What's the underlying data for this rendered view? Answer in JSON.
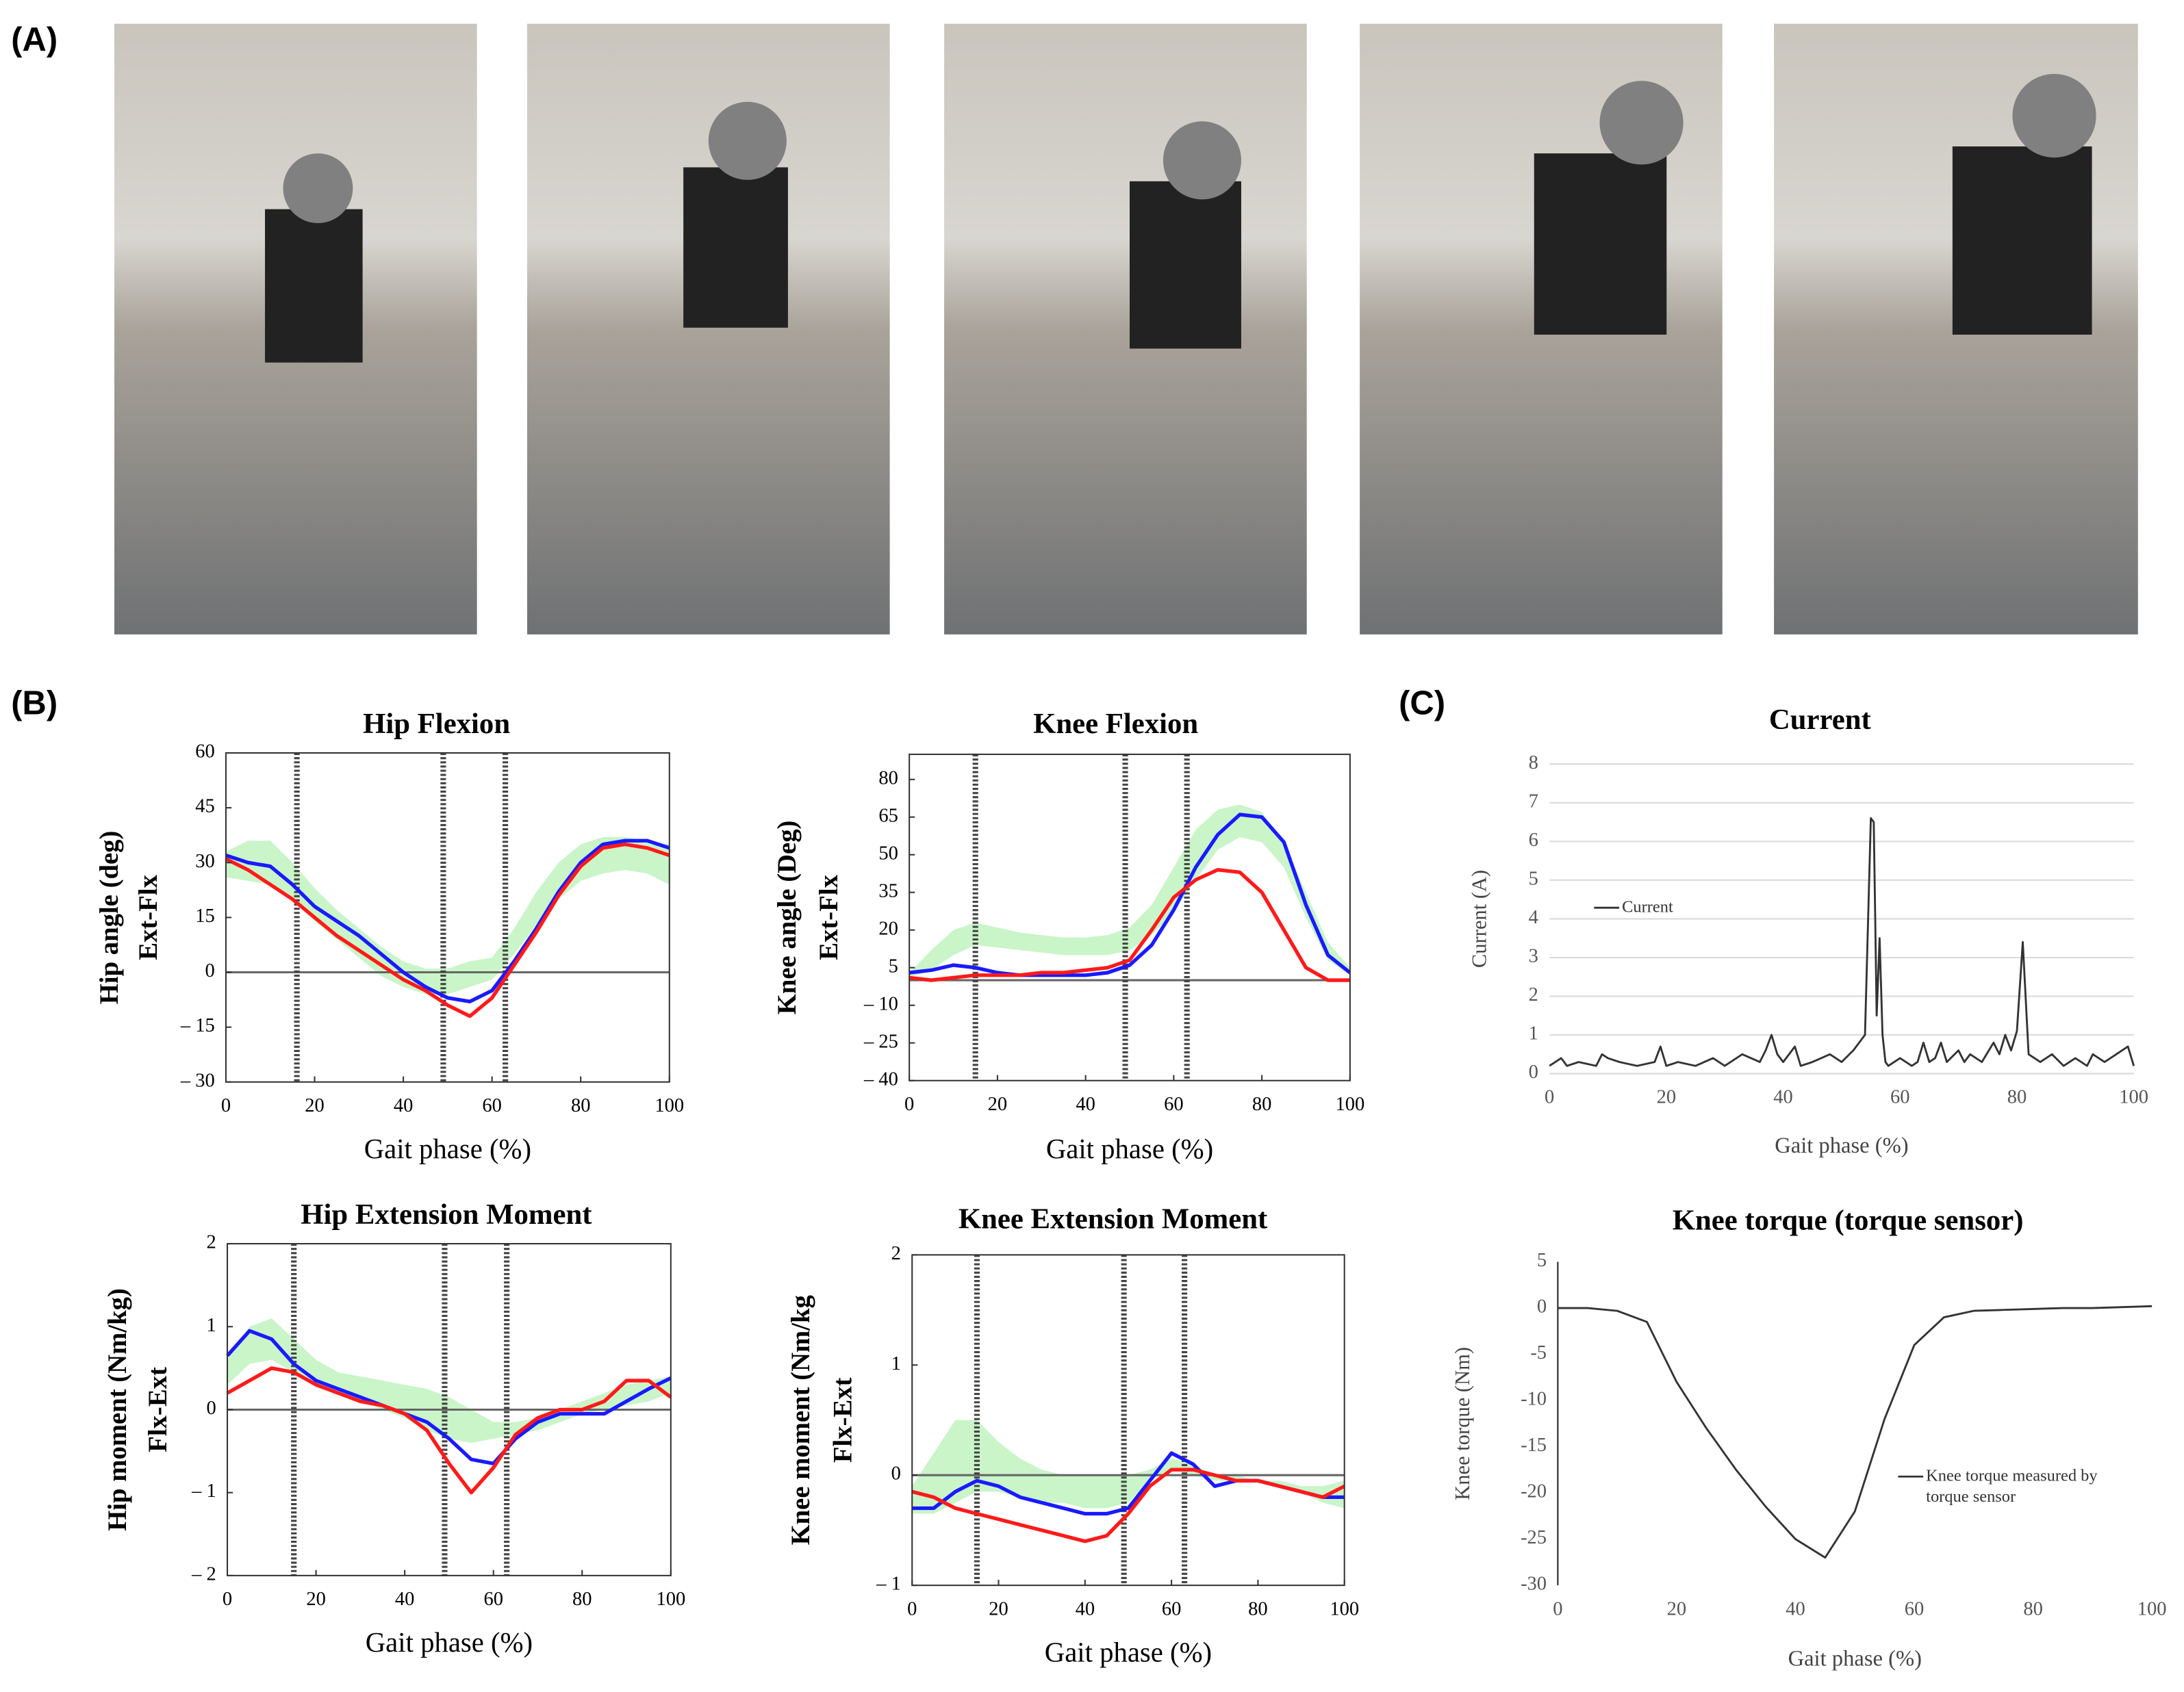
{
  "panel_labels": [
    "(A)",
    "(B)",
    "(C)"
  ],
  "chart_data": [
    {
      "type": "line",
      "title": "Hip Flexion",
      "xlabel": "Gait phase (%)",
      "ylabel": [
        "Hip angle (deg)",
        "Ext-Flx"
      ],
      "xlim": [
        0,
        100
      ],
      "xticks": [
        0,
        20,
        40,
        60,
        80,
        100
      ],
      "ylim": [
        -30,
        60
      ],
      "yticks": [
        {
          "value": -30,
          "label": "– 30"
        },
        {
          "value": -15,
          "label": "– 15"
        },
        0,
        15,
        30,
        45,
        60
      ],
      "frame": "box",
      "zero_line": true,
      "vlines": [
        16,
        49,
        63
      ],
      "x": [
        0,
        5,
        10,
        15,
        20,
        25,
        30,
        35,
        40,
        45,
        50,
        55,
        60,
        65,
        70,
        75,
        80,
        85,
        90,
        95,
        100
      ],
      "band": {
        "color": "#c9f5c9",
        "lower": [
          26,
          25,
          24,
          20,
          14,
          9,
          4,
          -1,
          -4,
          -6,
          -6,
          -4,
          -2,
          5,
          13,
          20,
          25,
          27,
          28,
          27,
          24
        ],
        "upper": [
          33,
          36,
          36,
          30,
          23,
          17,
          12,
          7,
          3,
          1,
          1,
          3,
          4,
          12,
          22,
          30,
          35,
          37,
          37,
          36,
          35
        ]
      },
      "series": [
        {
          "color": "#1a1aff",
          "values": [
            32,
            30,
            29,
            24,
            18,
            14,
            10,
            5,
            0,
            -4,
            -7,
            -8,
            -5,
            3,
            12,
            22,
            30,
            35,
            36,
            36,
            34
          ]
        },
        {
          "color": "#ff1a1a",
          "values": [
            31,
            28,
            24,
            20,
            15,
            10,
            6,
            2,
            -2,
            -5,
            -9,
            -12,
            -7,
            2,
            11,
            21,
            29,
            34,
            35,
            34,
            32
          ]
        }
      ]
    },
    {
      "type": "line",
      "title": "Knee Flexion",
      "xlabel": "Gait phase (%)",
      "ylabel": [
        "Knee angle (Deg)",
        "Ext-Flx"
      ],
      "xlim": [
        0,
        100
      ],
      "xticks": [
        0,
        20,
        40,
        60,
        80,
        100
      ],
      "ylim": [
        -40,
        90
      ],
      "yticks": [
        {
          "value": -40,
          "label": "– 40"
        },
        {
          "value": -25,
          "label": "– 25"
        },
        {
          "value": -10,
          "label": "– 10"
        },
        5,
        20,
        35,
        50,
        65,
        80
      ],
      "frame": "box",
      "zero_line": true,
      "vlines": [
        15,
        49,
        63
      ],
      "x": [
        0,
        5,
        10,
        15,
        20,
        25,
        30,
        35,
        40,
        45,
        50,
        55,
        60,
        65,
        70,
        75,
        80,
        85,
        90,
        95,
        100
      ],
      "band": {
        "color": "#c9f5c9",
        "lower": [
          1,
          4,
          10,
          14,
          13,
          12,
          11,
          10,
          10,
          10,
          12,
          18,
          27,
          40,
          52,
          57,
          55,
          45,
          25,
          8,
          2
        ],
        "upper": [
          3,
          12,
          20,
          23,
          21,
          19,
          18,
          17,
          17,
          18,
          21,
          30,
          45,
          60,
          68,
          70,
          67,
          55,
          35,
          15,
          5
        ]
      },
      "series": [
        {
          "color": "#1a1aff",
          "values": [
            3,
            4,
            6,
            5,
            3,
            2,
            2,
            2,
            2,
            3,
            6,
            14,
            28,
            45,
            58,
            66,
            65,
            55,
            30,
            10,
            3
          ]
        },
        {
          "color": "#ff1a1a",
          "values": [
            1,
            0,
            1,
            2,
            2,
            2,
            3,
            3,
            4,
            5,
            8,
            20,
            33,
            40,
            44,
            43,
            35,
            20,
            5,
            0,
            0
          ]
        }
      ]
    },
    {
      "type": "line",
      "title": "Hip Extension Moment",
      "xlabel": "Gait phase (%)",
      "ylabel": [
        "Hip moment (Nm/kg)",
        "Flx-Ext"
      ],
      "xlim": [
        0,
        100
      ],
      "xticks": [
        0,
        20,
        40,
        60,
        80,
        100
      ],
      "ylim": [
        -2,
        2
      ],
      "yticks": [
        {
          "value": -2,
          "label": "– 2"
        },
        {
          "value": -1,
          "label": "– 1"
        },
        0,
        1,
        2
      ],
      "frame": "box",
      "zero_line": true,
      "vlines": [
        15,
        49,
        63
      ],
      "x": [
        0,
        5,
        10,
        15,
        20,
        25,
        30,
        35,
        40,
        45,
        50,
        55,
        60,
        65,
        70,
        75,
        80,
        85,
        90,
        95,
        100
      ],
      "band": {
        "color": "#c9f5c9",
        "lower": [
          0.3,
          0.55,
          0.6,
          0.45,
          0.3,
          0.2,
          0.1,
          0.0,
          -0.1,
          -0.25,
          -0.35,
          -0.4,
          -0.35,
          -0.3,
          -0.25,
          -0.15,
          -0.05,
          0.0,
          0.05,
          0.1,
          0.2
        ],
        "upper": [
          0.6,
          1.0,
          1.1,
          0.85,
          0.6,
          0.45,
          0.4,
          0.35,
          0.3,
          0.25,
          0.15,
          0.0,
          -0.15,
          -0.15,
          -0.1,
          0.0,
          0.1,
          0.2,
          0.3,
          0.35,
          0.4
        ]
      },
      "series": [
        {
          "color": "#1a1aff",
          "values": [
            0.65,
            0.95,
            0.85,
            0.55,
            0.35,
            0.25,
            0.15,
            0.05,
            -0.05,
            -0.15,
            -0.35,
            -0.6,
            -0.65,
            -0.35,
            -0.15,
            -0.05,
            -0.05,
            -0.05,
            0.1,
            0.25,
            0.38
          ]
        },
        {
          "color": "#ff1a1a",
          "values": [
            0.2,
            0.35,
            0.5,
            0.45,
            0.3,
            0.2,
            0.1,
            0.05,
            -0.05,
            -0.25,
            -0.65,
            -1.0,
            -0.7,
            -0.3,
            -0.1,
            0.0,
            0.0,
            0.1,
            0.35,
            0.35,
            0.15
          ]
        }
      ]
    },
    {
      "type": "line",
      "title": "Knee Extension Moment",
      "xlabel": "Gait phase (%)",
      "ylabel": [
        "Knee moment (Nm/kg",
        "Flx-Ext"
      ],
      "xlim": [
        0,
        100
      ],
      "xticks": [
        0,
        20,
        40,
        60,
        80,
        100
      ],
      "ylim": [
        -1,
        2
      ],
      "yticks": [
        {
          "value": -1,
          "label": "– 1"
        },
        0,
        1,
        2
      ],
      "frame": "box",
      "zero_line": true,
      "vlines": [
        15,
        49,
        63
      ],
      "x": [
        0,
        5,
        10,
        15,
        20,
        25,
        30,
        35,
        40,
        45,
        50,
        55,
        60,
        65,
        70,
        75,
        80,
        85,
        90,
        95,
        100
      ],
      "band": {
        "color": "#c9f5c9",
        "lower": [
          -0.35,
          -0.35,
          -0.25,
          -0.15,
          -0.15,
          -0.2,
          -0.25,
          -0.25,
          -0.3,
          -0.3,
          -0.25,
          -0.05,
          0.05,
          0.0,
          -0.05,
          -0.05,
          -0.05,
          -0.1,
          -0.15,
          -0.25,
          -0.3
        ],
        "upper": [
          -0.1,
          0.2,
          0.5,
          0.5,
          0.3,
          0.15,
          0.05,
          0.0,
          0.0,
          0.0,
          0.0,
          0.05,
          0.15,
          0.1,
          0.0,
          0.0,
          -0.05,
          -0.05,
          -0.1,
          -0.1,
          -0.05
        ]
      },
      "series": [
        {
          "color": "#1a1aff",
          "values": [
            -0.3,
            -0.3,
            -0.15,
            -0.05,
            -0.1,
            -0.2,
            -0.25,
            -0.3,
            -0.35,
            -0.35,
            -0.3,
            -0.05,
            0.2,
            0.1,
            -0.1,
            -0.05,
            -0.05,
            -0.1,
            -0.15,
            -0.2,
            -0.2
          ]
        },
        {
          "color": "#ff1a1a",
          "values": [
            -0.15,
            -0.2,
            -0.3,
            -0.35,
            -0.4,
            -0.45,
            -0.5,
            -0.55,
            -0.6,
            -0.55,
            -0.35,
            -0.1,
            0.05,
            0.05,
            0.0,
            -0.05,
            -0.05,
            -0.1,
            -0.15,
            -0.2,
            -0.1
          ]
        }
      ]
    },
    {
      "type": "line",
      "title": "Current",
      "xlabel": "Gait phase (%)",
      "ylabel": [
        "Current (A)"
      ],
      "xlim": [
        0,
        100
      ],
      "xticks": [
        0,
        20,
        40,
        60,
        80,
        100
      ],
      "ylim": [
        0,
        8
      ],
      "yticks": [
        0,
        1,
        2,
        3,
        4,
        5,
        6,
        7,
        8
      ],
      "frame": "none",
      "grid": true,
      "legend": "center-left",
      "x": [
        0,
        2,
        3,
        5,
        8,
        9,
        10,
        12,
        15,
        18,
        19,
        20,
        22,
        25,
        28,
        30,
        33,
        36,
        37,
        38,
        39,
        40,
        42,
        43,
        45,
        48,
        50,
        52,
        54,
        55,
        55.5,
        56,
        56.5,
        57,
        57.5,
        58,
        60,
        62,
        63,
        64,
        65,
        66,
        67,
        68,
        70,
        71,
        72,
        74,
        76,
        77,
        78,
        79,
        80,
        81,
        82,
        84,
        86,
        88,
        90,
        92,
        93,
        95,
        97,
        99,
        100
      ],
      "series": [
        {
          "name": "Current",
          "color": "#333333",
          "values": [
            0.2,
            0.4,
            0.2,
            0.3,
            0.2,
            0.5,
            0.4,
            0.3,
            0.2,
            0.3,
            0.7,
            0.2,
            0.3,
            0.2,
            0.4,
            0.2,
            0.5,
            0.3,
            0.6,
            1.0,
            0.5,
            0.3,
            0.7,
            0.2,
            0.3,
            0.5,
            0.3,
            0.6,
            1.0,
            6.6,
            6.5,
            1.5,
            3.5,
            1.0,
            0.3,
            0.2,
            0.4,
            0.2,
            0.3,
            0.8,
            0.3,
            0.4,
            0.8,
            0.3,
            0.6,
            0.3,
            0.5,
            0.3,
            0.8,
            0.5,
            1.0,
            0.6,
            1.1,
            3.4,
            0.5,
            0.3,
            0.5,
            0.2,
            0.4,
            0.2,
            0.5,
            0.3,
            0.5,
            0.7,
            0.2
          ]
        }
      ]
    },
    {
      "type": "line",
      "title": "Knee torque (torque sensor)",
      "xlabel": "Gait phase (%)",
      "ylabel": [
        "Knee  torque (Nm)"
      ],
      "xlim": [
        0,
        100
      ],
      "xticks": [
        0,
        20,
        40,
        60,
        80,
        100
      ],
      "ylim": [
        -30,
        5
      ],
      "yticks": [
        -30,
        -25,
        -20,
        -15,
        -10,
        -5,
        0,
        5
      ],
      "frame": "left",
      "legend": "lower-right",
      "x": [
        0,
        5,
        10,
        15,
        20,
        25,
        30,
        35,
        40,
        45,
        50,
        55,
        60,
        65,
        70,
        75,
        80,
        85,
        90,
        95,
        100
      ],
      "series": [
        {
          "name": "Knee torque measured by torque sensor",
          "color": "#333333",
          "values": [
            0,
            0,
            -0.3,
            -1.5,
            -8,
            -13,
            -17.5,
            -21.5,
            -25,
            -27,
            -22,
            -12,
            -4,
            -1,
            -0.3,
            -0.2,
            -0.1,
            0,
            0,
            0.1,
            0.2
          ]
        }
      ]
    }
  ]
}
